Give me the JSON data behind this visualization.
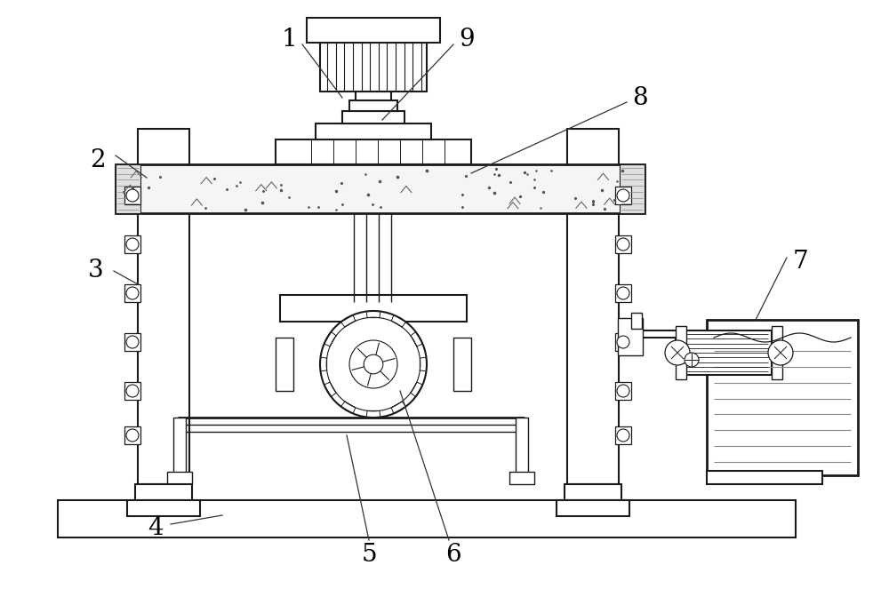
{
  "bg_color": "#ffffff",
  "line_color": "#1a1a1a",
  "fig_width": 10.0,
  "fig_height": 6.9,
  "dpi": 100
}
